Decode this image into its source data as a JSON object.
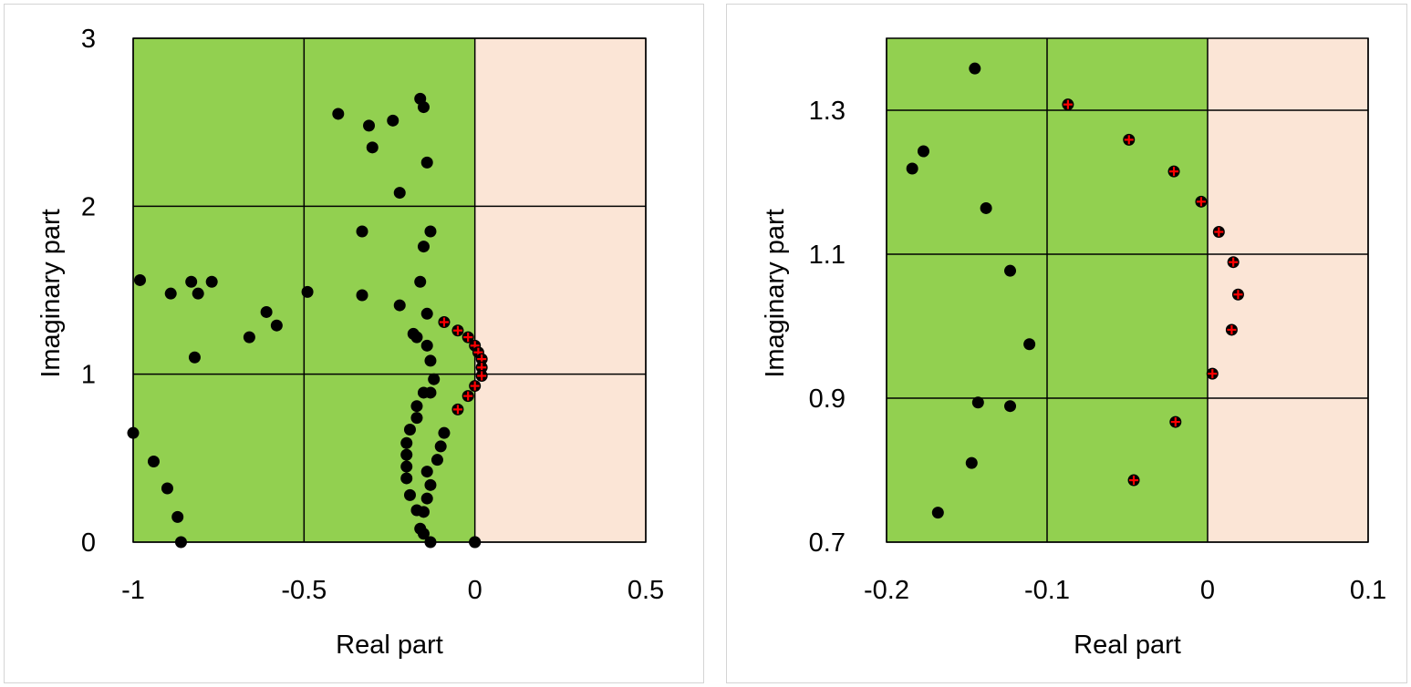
{
  "colors": {
    "stable_region": "#92d050",
    "unstable_region": "#fbe5d6",
    "grid": "#000000",
    "point": "#000000",
    "highlight_marker": "#ff0000"
  },
  "chart_data": [
    {
      "type": "scatter",
      "title": "",
      "xlabel": "Real part",
      "ylabel": "Imaginary part",
      "xlim": [
        -1,
        0.5
      ],
      "ylim": [
        0,
        3
      ],
      "xticks": [
        -1,
        -0.5,
        0,
        0.5
      ],
      "yticks": [
        0,
        1,
        2,
        3
      ],
      "xtick_labels": [
        "-1",
        "-0.5",
        "0",
        "0.5"
      ],
      "ytick_labels": [
        "0",
        "1",
        "2",
        "3"
      ],
      "regions": [
        {
          "x_from": -1,
          "x_to": 0,
          "color": "#92d050"
        },
        {
          "x_from": 0,
          "x_to": 0.5,
          "color": "#fbe5d6"
        }
      ],
      "grid": true,
      "series": [
        {
          "marker": "black-dot",
          "points": [
            [
              -0.16,
              2.64
            ],
            [
              -0.15,
              2.59
            ],
            [
              -0.4,
              2.55
            ],
            [
              -0.24,
              2.51
            ],
            [
              -0.31,
              2.48
            ],
            [
              -0.3,
              2.35
            ],
            [
              -0.14,
              2.26
            ],
            [
              -0.22,
              2.08
            ],
            [
              -0.33,
              1.85
            ],
            [
              -0.13,
              1.85
            ],
            [
              -0.15,
              1.76
            ],
            [
              -0.98,
              1.56
            ],
            [
              -0.83,
              1.55
            ],
            [
              -0.77,
              1.55
            ],
            [
              -0.16,
              1.55
            ],
            [
              -0.49,
              1.49
            ],
            [
              -0.89,
              1.48
            ],
            [
              -0.81,
              1.48
            ],
            [
              -0.33,
              1.47
            ],
            [
              -0.22,
              1.41
            ],
            [
              -0.61,
              1.37
            ],
            [
              -0.14,
              1.36
            ],
            [
              -0.58,
              1.29
            ],
            [
              -0.66,
              1.22
            ],
            [
              -0.18,
              1.24
            ],
            [
              -0.17,
              1.22
            ],
            [
              -0.14,
              1.17
            ],
            [
              -0.82,
              1.1
            ],
            [
              -0.13,
              1.08
            ],
            [
              -0.12,
              0.97
            ],
            [
              -0.15,
              0.89
            ],
            [
              -0.13,
              0.89
            ],
            [
              -0.17,
              0.81
            ],
            [
              -0.17,
              0.74
            ],
            [
              -0.19,
              0.67
            ],
            [
              -0.09,
              0.65
            ],
            [
              -0.2,
              0.59
            ],
            [
              -0.1,
              0.57
            ],
            [
              -0.2,
              0.52
            ],
            [
              -0.11,
              0.49
            ],
            [
              -0.2,
              0.45
            ],
            [
              -0.14,
              0.42
            ],
            [
              -0.2,
              0.38
            ],
            [
              -0.13,
              0.34
            ],
            [
              -0.19,
              0.28
            ],
            [
              -0.14,
              0.26
            ],
            [
              -0.17,
              0.19
            ],
            [
              -0.15,
              0.18
            ],
            [
              -0.16,
              0.08
            ],
            [
              -0.15,
              0.05
            ],
            [
              -0.13,
              0.0
            ],
            [
              -1.0,
              0.65
            ],
            [
              -0.94,
              0.48
            ],
            [
              -0.9,
              0.32
            ],
            [
              -0.87,
              0.15
            ],
            [
              -0.86,
              0.0
            ],
            [
              0.0,
              0.0
            ],
            [
              0.0,
              0.0
            ]
          ]
        },
        {
          "marker": "black-dot-red-cross",
          "points": [
            [
              -0.09,
              1.31
            ],
            [
              -0.05,
              1.26
            ],
            [
              -0.02,
              1.22
            ],
            [
              0.0,
              1.17
            ],
            [
              0.01,
              1.13
            ],
            [
              0.02,
              1.09
            ],
            [
              0.02,
              1.04
            ],
            [
              0.02,
              0.99
            ],
            [
              0.0,
              0.93
            ],
            [
              -0.02,
              0.87
            ],
            [
              -0.05,
              0.79
            ]
          ]
        }
      ]
    },
    {
      "type": "scatter",
      "title": "",
      "xlabel": "Real part",
      "ylabel": "Imaginary part",
      "xlim": [
        -0.2,
        0.1
      ],
      "ylim": [
        0.7,
        1.4
      ],
      "xticks": [
        -0.2,
        -0.1,
        0,
        0.1
      ],
      "yticks": [
        0.7,
        0.9,
        1.1,
        1.3
      ],
      "xtick_labels": [
        "-0.2",
        "-0.1",
        "0",
        "0.1"
      ],
      "ytick_labels": [
        "0.7",
        "0.9",
        "1.1",
        "1.3"
      ],
      "grid_y": [
        0.9,
        1.1,
        1.3
      ],
      "regions": [
        {
          "x_from": -0.2,
          "x_to": 0,
          "color": "#92d050"
        },
        {
          "x_from": 0,
          "x_to": 0.1,
          "color": "#fbe5d6"
        }
      ],
      "grid": true,
      "series": [
        {
          "marker": "black-dot",
          "points": [
            [
              -0.145,
              1.358
            ],
            [
              -0.177,
              1.243
            ],
            [
              -0.184,
              1.219
            ],
            [
              -0.138,
              1.164
            ],
            [
              -0.123,
              1.077
            ],
            [
              -0.111,
              0.975
            ],
            [
              -0.143,
              0.894
            ],
            [
              -0.123,
              0.889
            ],
            [
              -0.147,
              0.81
            ],
            [
              -0.168,
              0.741
            ]
          ]
        },
        {
          "marker": "black-dot-red-cross",
          "points": [
            [
              -0.087,
              1.308
            ],
            [
              -0.049,
              1.259
            ],
            [
              -0.021,
              1.215
            ],
            [
              -0.004,
              1.173
            ],
            [
              0.007,
              1.131
            ],
            [
              0.016,
              1.089
            ],
            [
              0.019,
              1.044
            ],
            [
              0.015,
              0.995
            ],
            [
              0.003,
              0.934
            ],
            [
              -0.02,
              0.867
            ],
            [
              -0.046,
              0.786
            ]
          ]
        }
      ]
    }
  ]
}
